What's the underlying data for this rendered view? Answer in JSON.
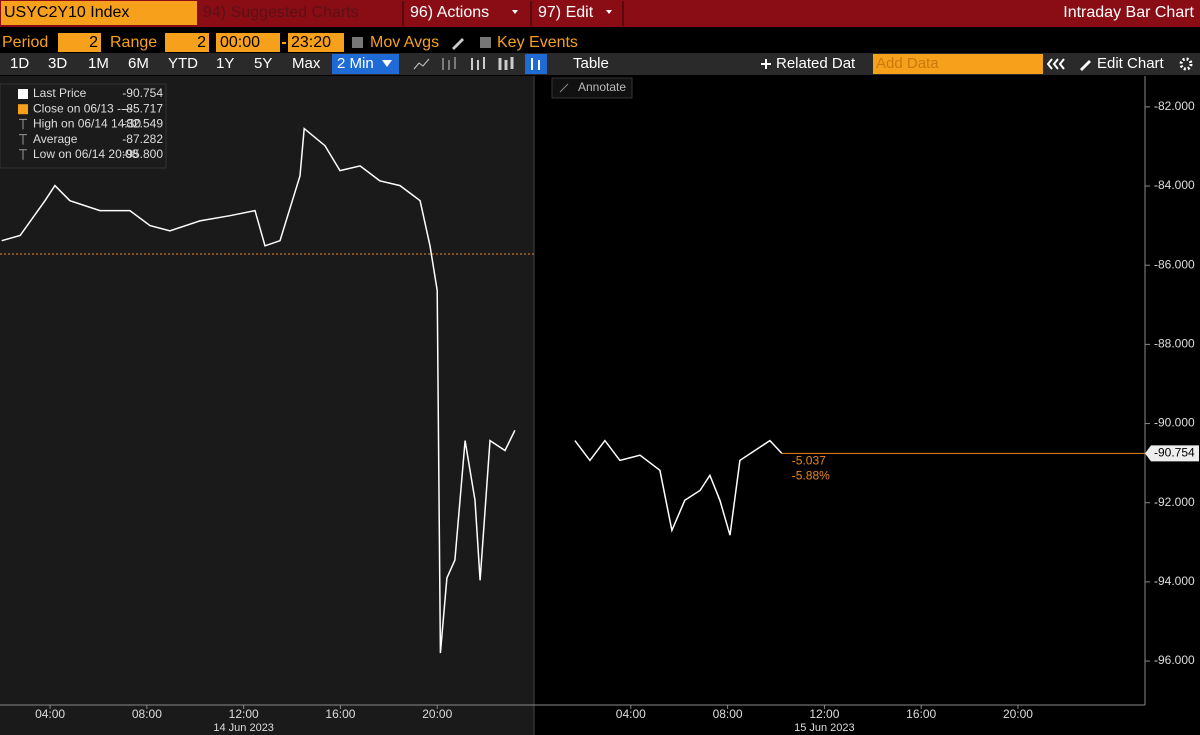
{
  "toolbar": {
    "ticker": "USYC2Y10 Index",
    "menus": [
      "94) Suggested Charts",
      "96) Actions",
      "97) Edit"
    ],
    "title": "Intraday Bar Chart"
  },
  "controls": {
    "period_label": "Period",
    "period": "2",
    "range_label": "Range",
    "range": "2",
    "from": "00:00",
    "to": "23:20",
    "mov_avgs": "Mov Avgs",
    "key_events": "Key Events"
  },
  "range_buttons": [
    "1D",
    "3D",
    "1M",
    "6M",
    "YTD",
    "1Y",
    "5Y",
    "Max"
  ],
  "interval": "2 Min",
  "table": "Table",
  "related": "Related Dat",
  "add_data": "Add Data",
  "edit_chart": "Edit Chart",
  "annotate": "Annotate",
  "chart_data": {
    "type": "line",
    "x": [
      2.0,
      2.76,
      3.79,
      4.2,
      4.82,
      6.06,
      7.3,
      8.13,
      8.95,
      10.19,
      11.43,
      12.47,
      12.88,
      13.5,
      14.33,
      14.5,
      15.36,
      15.98,
      16.81,
      17.63,
      18.46,
      19.29,
      19.7,
      20.0,
      20.13,
      20.4,
      20.73,
      21.15,
      21.56,
      21.77,
      22.18,
      22.8,
      23.21,
      24,
      25.69,
      26.31,
      26.93,
      27.55,
      28.38,
      29.2,
      29.7,
      30.23,
      30.86,
      31.27,
      31.68,
      32.1,
      32.51,
      33.13,
      33.75,
      34.24
    ],
    "series": [
      {
        "name": "Last Price",
        "color": "#ffffff",
        "values": [
          -85.38,
          -85.25,
          -84.37,
          -83.99,
          -84.37,
          -84.62,
          -84.62,
          -85.0,
          -85.13,
          -84.88,
          -84.75,
          -84.62,
          -85.51,
          -85.38,
          -83.74,
          -82.549,
          -82.98,
          -83.61,
          -83.49,
          -83.87,
          -83.99,
          -84.37,
          -85.51,
          -86.64,
          -95.8,
          -93.9,
          -93.45,
          -90.43,
          -91.94,
          -93.96,
          -90.43,
          -90.68,
          -90.17,
          null,
          -90.43,
          -90.93,
          -90.43,
          -90.93,
          -90.8,
          -91.18,
          -92.7,
          -91.94,
          -91.69,
          -91.31,
          -91.94,
          -92.82,
          -90.93,
          -90.68,
          -90.43,
          -90.754
        ]
      }
    ],
    "stats": [
      {
        "name": "Last Price",
        "value": -90.754
      },
      {
        "name": "Close on 06/13 ----",
        "value": -85.717
      },
      {
        "name": "High on 06/14 14:30",
        "value": -82.549
      },
      {
        "name": "Average",
        "value": -87.282
      },
      {
        "name": "Low on 06/14 20:08",
        "value": {
          "value": -95.8,
          "label": "-95.800"
        }
      }
    ],
    "change": -5.037,
    "change_pct": {
      "value": -5.88,
      "label": "-5.88%"
    },
    "xlim": [
      1.93,
      49.25
    ],
    "xticks": [
      {
        "value": 4,
        "label": "04:00"
      },
      {
        "value": 8,
        "label": "08:00"
      },
      {
        "value": 12,
        "label": "12:00"
      },
      {
        "value": 16,
        "label": "16:00"
      },
      {
        "value": 20,
        "label": "20:00"
      },
      {
        "value": 28,
        "label": "04:00"
      },
      {
        "value": 32,
        "label": "08:00"
      },
      {
        "value": 36,
        "label": "12:00"
      },
      {
        "value": 40,
        "label": "16:00"
      },
      {
        "value": 44,
        "label": "20:00"
      }
    ],
    "dates": [
      {
        "value": 12,
        "label": "14 Jun 2023"
      },
      {
        "value": 36,
        "label": "15 Jun 2023"
      }
    ],
    "ylim": [
      -97.11,
      -81.22
    ],
    "yticks": [
      {
        "value": -82,
        "label": "-82.000"
      },
      {
        "value": -84,
        "label": "-84.000"
      },
      {
        "value": -86,
        "label": "-86.000"
      },
      {
        "value": -88,
        "label": "-88.000"
      },
      {
        "value": -90,
        "label": "-90.000"
      },
      {
        "value": -92,
        "label": "-92.000"
      },
      {
        "value": -94,
        "label": "-94.000"
      },
      {
        "value": -96,
        "label": "-96.000"
      }
    ],
    "grid": false,
    "close_color": "#e8891d"
  }
}
